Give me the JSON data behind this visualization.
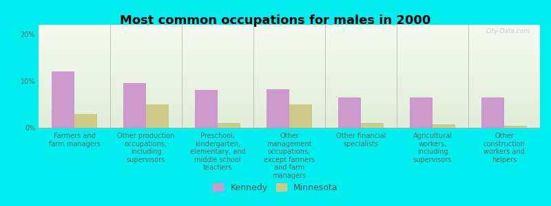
{
  "title": "Most common occupations for males in 2000",
  "categories": [
    "Farmers and\nfarm managers",
    "Other production\noccupations,\nincluding\nsupervisors",
    "Preschool,\nkindergarten,\nelementary, and\nmiddle school\nteachers",
    "Other\nmanagement\noccupations,\nexcept farmers\nand farm\nmanagers",
    "Other financial\nspecialists",
    "Agricultural\nworkers,\nincluding\nsupervisors",
    "Other\nconstruction\nworkers and\nhelpers"
  ],
  "kennedy_values": [
    12.0,
    9.5,
    8.0,
    8.2,
    6.5,
    6.5,
    6.5
  ],
  "minnesota_values": [
    3.0,
    5.0,
    1.0,
    5.0,
    1.0,
    0.8,
    0.5
  ],
  "kennedy_color": "#cc99cc",
  "minnesota_color": "#cccc88",
  "background_color": "#00eeee",
  "plot_bg_color": "#e8f0dc",
  "ylim": [
    0,
    22
  ],
  "yticks": [
    0,
    10,
    20
  ],
  "ytick_labels": [
    "0%",
    "10%",
    "20%"
  ],
  "bar_width": 0.32,
  "title_fontsize": 13,
  "tick_fontsize": 7,
  "legend_fontsize": 9,
  "watermark": "City-Data.com"
}
